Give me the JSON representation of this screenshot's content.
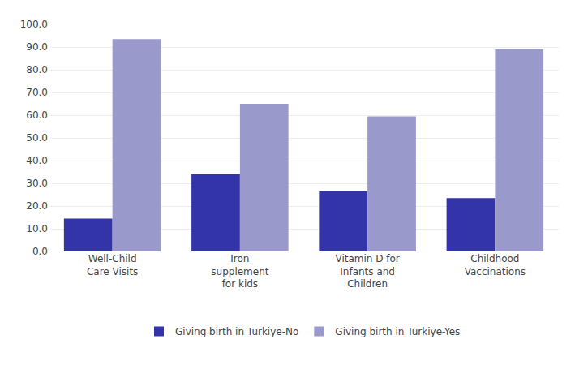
{
  "chart_data": {
    "type": "bar",
    "categories": [
      "Well-Child\nCare Visits",
      "Iron\nsupplement\nfor kids",
      "Vitamin D for\nInfants and\nChildren",
      "Childhood\nVaccinations"
    ],
    "series": [
      {
        "name": "Giving birth in Turkiye-No",
        "color": "#3333AA",
        "values": [
          14.5,
          34.0,
          26.5,
          23.5
        ]
      },
      {
        "name": "Giving birth in Turkiye-Yes",
        "color": "#9999CC",
        "values": [
          93.5,
          65.0,
          59.5,
          89.0
        ]
      }
    ],
    "ylim": [
      0,
      100
    ],
    "yticks": [
      {
        "value": 0,
        "label": "0.0"
      },
      {
        "value": 10,
        "label": "10.0"
      },
      {
        "value": 20,
        "label": "20.0"
      },
      {
        "value": 30,
        "label": "30.0"
      },
      {
        "value": 40,
        "label": "40.0"
      },
      {
        "value": 50,
        "label": "50.0"
      },
      {
        "value": 60,
        "label": "60.0"
      },
      {
        "value": 70,
        "label": "70.0"
      },
      {
        "value": 80,
        "label": "80.0"
      },
      {
        "value": 90,
        "label": "90.0"
      },
      {
        "value": 100,
        "label": "100.0"
      }
    ],
    "grid": true,
    "legend": "bottom"
  }
}
